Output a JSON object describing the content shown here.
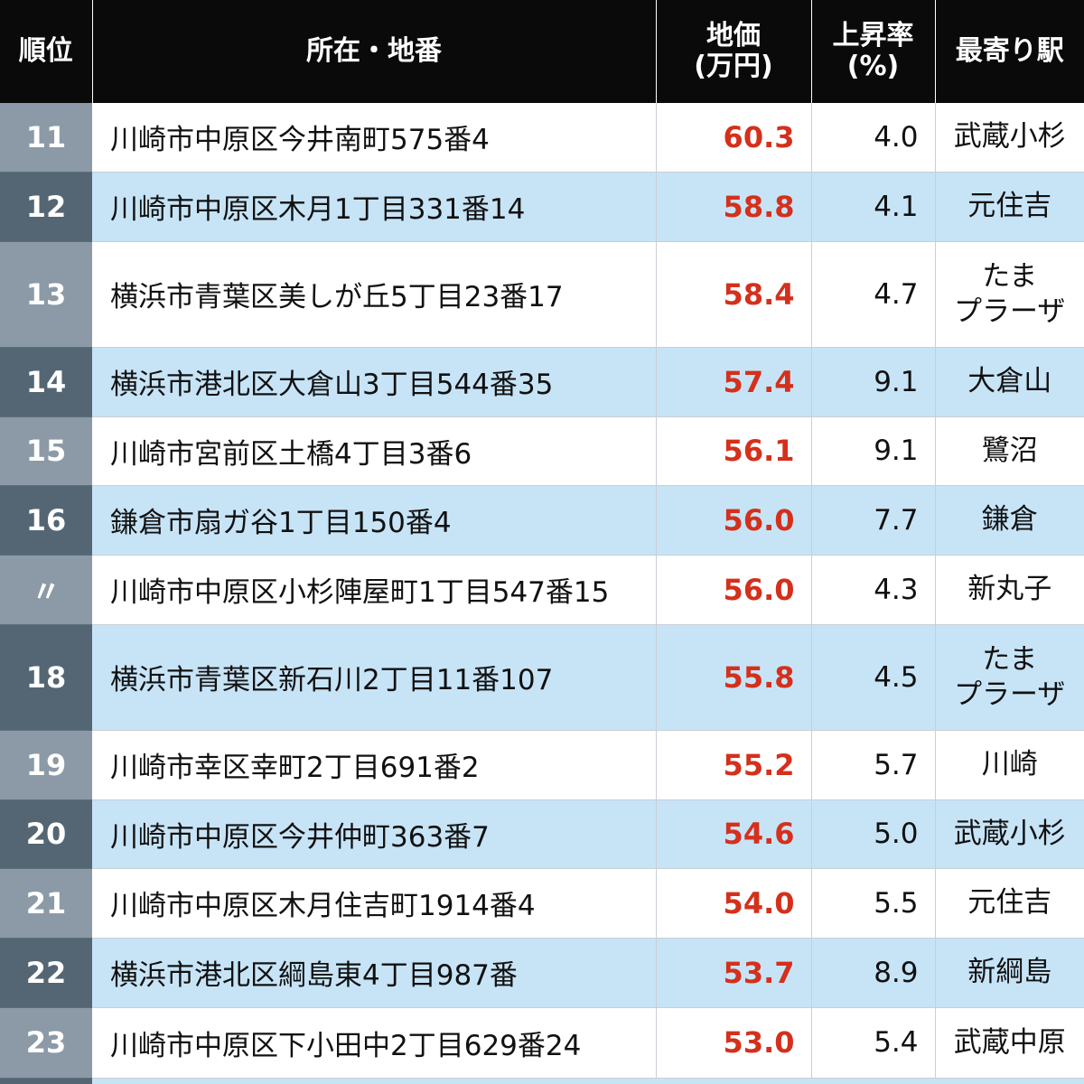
{
  "header": {
    "rank": "順位",
    "address": "所在・地番",
    "price_line1": "地価",
    "price_line2": "(万円)",
    "rate_line1": "上昇率",
    "rate_line2": "(%)",
    "station": "最寄り駅"
  },
  "rows": [
    {
      "rank": "11",
      "address": "川崎市中原区今井南町575番4",
      "price": "60.3",
      "rate": "4.0",
      "station": [
        "武蔵小杉"
      ]
    },
    {
      "rank": "12",
      "address": "川崎市中原区木月1丁目331番14",
      "price": "58.8",
      "rate": "4.1",
      "station": [
        "元住吉"
      ]
    },
    {
      "rank": "13",
      "address": "横浜市青葉区美しが丘5丁目23番17",
      "price": "58.4",
      "rate": "4.7",
      "station": [
        "たま",
        "プラーザ"
      ]
    },
    {
      "rank": "14",
      "address": "横浜市港北区大倉山3丁目544番35",
      "price": "57.4",
      "rate": "9.1",
      "station": [
        "大倉山"
      ]
    },
    {
      "rank": "15",
      "address": "川崎市宮前区土橋4丁目3番6",
      "price": "56.1",
      "rate": "9.1",
      "station": [
        "鷺沼"
      ]
    },
    {
      "rank": "16",
      "address": "鎌倉市扇ガ谷1丁目150番4",
      "price": "56.0",
      "rate": "7.7",
      "station": [
        "鎌倉"
      ]
    },
    {
      "rank": "〃",
      "address": "川崎市中原区小杉陣屋町1丁目547番15",
      "price": "56.0",
      "rate": "4.3",
      "station": [
        "新丸子"
      ]
    },
    {
      "rank": "18",
      "address": "横浜市青葉区新石川2丁目11番107",
      "price": "55.8",
      "rate": "4.5",
      "station": [
        "たま",
        "プラーザ"
      ]
    },
    {
      "rank": "19",
      "address": "川崎市幸区幸町2丁目691番2",
      "price": "55.2",
      "rate": "5.7",
      "station": [
        "川崎"
      ]
    },
    {
      "rank": "20",
      "address": "川崎市中原区今井仲町363番7",
      "price": "54.6",
      "rate": "5.0",
      "station": [
        "武蔵小杉"
      ]
    },
    {
      "rank": "21",
      "address": "川崎市中原区木月住吉町1914番4",
      "price": "54.0",
      "rate": "5.5",
      "station": [
        "元住吉"
      ]
    },
    {
      "rank": "22",
      "address": "横浜市港北区綱島東4丁目987番",
      "price": "53.7",
      "rate": "8.9",
      "station": [
        "新綱島"
      ]
    },
    {
      "rank": "23",
      "address": "川崎市中原区下小田中2丁目629番24",
      "price": "53.0",
      "rate": "5.4",
      "station": [
        "武蔵中原"
      ]
    }
  ],
  "colors": {
    "header_bg": "#0a0a0a",
    "price_text": "#d4301c",
    "row_alt_bg": "#c7e4f7",
    "rank_light_bg": "#8b9aa6",
    "rank_dark_bg": "#546674"
  }
}
